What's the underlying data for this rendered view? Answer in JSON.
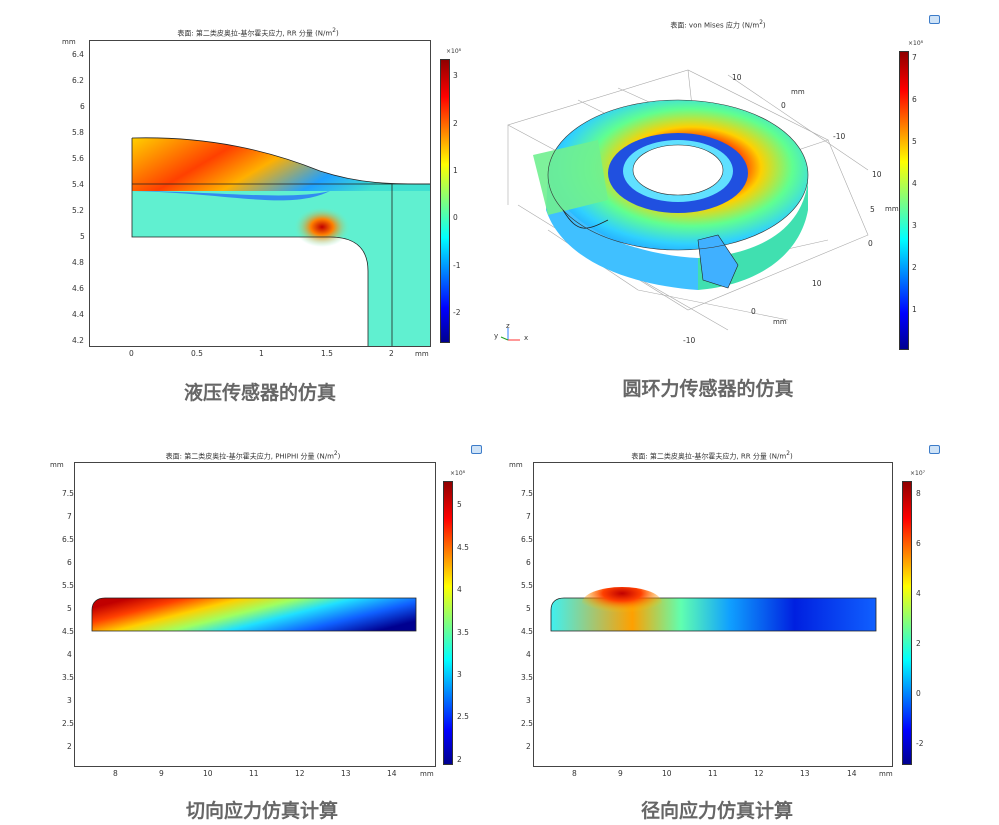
{
  "panels": [
    {
      "title": "表面: 第二类皮奥拉-基尔霍夫应力, RR 分量 (N/m",
      "title_sup": "2",
      "title_end": ")",
      "unit_x": "mm",
      "unit_y": "mm",
      "x_ticks": [
        "0",
        "0.5",
        "1",
        "1.5",
        "2"
      ],
      "y_ticks": [
        "6.4",
        "6.2",
        "6",
        "5.8",
        "5.6",
        "5.4",
        "5.2",
        "5",
        "4.8",
        "4.6",
        "4.4",
        "4.2"
      ],
      "cbar_exp": "×10⁸",
      "cbar_ticks": [
        "3",
        "2",
        "1",
        "0",
        "-1",
        "-2"
      ],
      "caption": "液压传感器的仿真"
    },
    {
      "title": "表面: von Mises 应力 (N/m",
      "title_sup": "2",
      "title_end": ")",
      "axis_labels_top": [
        "10",
        "mm",
        "0",
        "-10"
      ],
      "axis_labels_right": [
        "10",
        "5",
        "mm",
        "0"
      ],
      "axis_labels_bottom": [
        "10",
        "0",
        "mm",
        "-10"
      ],
      "triad": [
        "z",
        "y",
        "x"
      ],
      "cbar_exp": "×10⁸",
      "cbar_ticks": [
        "7",
        "6",
        "5",
        "4",
        "3",
        "2",
        "1"
      ],
      "caption": "圆环力传感器的仿真"
    },
    {
      "title": "表面: 第二类皮奥拉-基尔霍夫应力, PHIPHI 分量 (N/m",
      "title_sup": "2",
      "title_end": ")",
      "unit_x": "mm",
      "unit_y": "mm",
      "x_ticks": [
        "8",
        "9",
        "10",
        "11",
        "12",
        "13",
        "14"
      ],
      "y_ticks": [
        "7.5",
        "7",
        "6.5",
        "6",
        "5.5",
        "5",
        "4.5",
        "4",
        "3.5",
        "3",
        "2.5",
        "2"
      ],
      "cbar_exp": "×10⁸",
      "cbar_ticks": [
        "5",
        "4.5",
        "4",
        "3.5",
        "3",
        "2.5",
        "2"
      ],
      "caption": "切向应力仿真计算"
    },
    {
      "title": "表面: 第二类皮奥拉-基尔霍夫应力, RR 分量 (N/m",
      "title_sup": "2",
      "title_end": ")",
      "unit_x": "mm",
      "unit_y": "mm",
      "x_ticks": [
        "8",
        "9",
        "10",
        "11",
        "12",
        "13",
        "14"
      ],
      "y_ticks": [
        "7.5",
        "7",
        "6.5",
        "6",
        "5.5",
        "5",
        "4.5",
        "4",
        "3.5",
        "3",
        "2.5",
        "2"
      ],
      "cbar_exp": "×10⁷",
      "cbar_ticks": [
        "8",
        "6",
        "4",
        "2",
        "0",
        "-2"
      ],
      "caption": "径向应力仿真计算"
    }
  ],
  "colors": {
    "jet_low": "#00008f",
    "jet_high": "#8f0000",
    "caption": "#666666"
  },
  "icons": [
    "camera-icon"
  ]
}
